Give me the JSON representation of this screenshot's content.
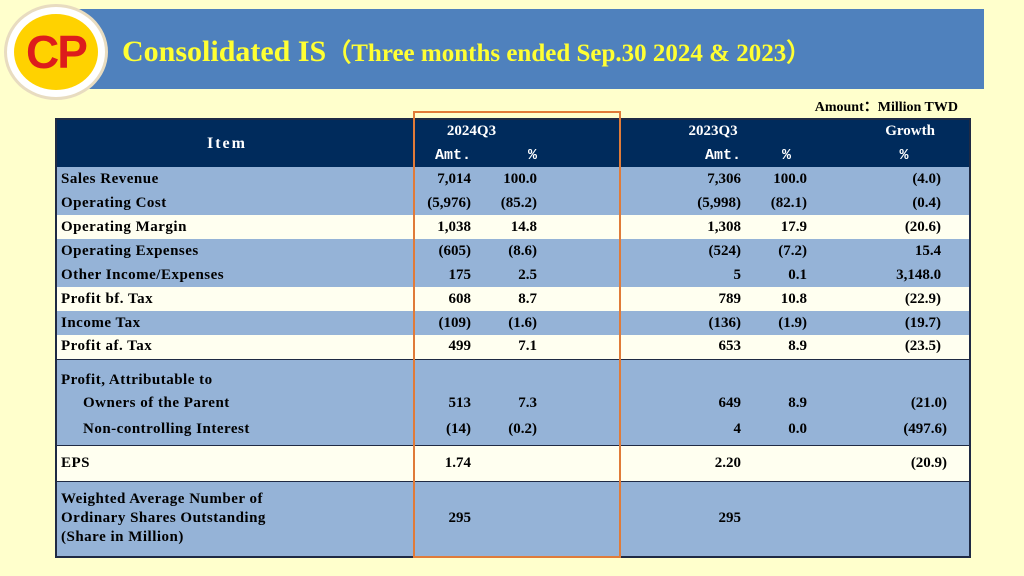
{
  "title": {
    "main": "Consolidated IS",
    "sub": "（Three months ended Sep.30 2024 & 2023）"
  },
  "logo": {
    "text": "CP"
  },
  "amount_note": "Amount：Million TWD",
  "table": {
    "header": {
      "item": "Item",
      "periods": [
        "2024Q3",
        "2023Q3"
      ],
      "growth": "Growth",
      "amt": "Amt.",
      "pct": "%"
    },
    "rows": [
      {
        "label": "Sales Revenue",
        "a24": "7,014",
        "p24": "100.0",
        "a23": "7,306",
        "p23": "100.0",
        "g": "(4.0)",
        "style": "blue"
      },
      {
        "label": "Operating Cost",
        "a24": "(5,976)",
        "p24": "(85.2)",
        "a23": "(5,998)",
        "p23": "(82.1)",
        "g": "(0.4)",
        "style": "blue"
      },
      {
        "label": "Operating Margin",
        "a24": "1,038",
        "p24": "14.8",
        "a23": "1,308",
        "p23": "17.9",
        "g": "(20.6)",
        "style": "white"
      },
      {
        "label": "Operating Expenses",
        "a24": "(605)",
        "p24": "(8.6)",
        "a23": "(524)",
        "p23": "(7.2)",
        "g": "15.4",
        "style": "blue"
      },
      {
        "label": "Other Income/Expenses",
        "a24": "175",
        "p24": "2.5",
        "a23": "5",
        "p23": "0.1",
        "g": "3,148.0",
        "style": "blue"
      },
      {
        "label": "Profit bf. Tax",
        "a24": "608",
        "p24": "8.7",
        "a23": "789",
        "p23": "10.8",
        "g": "(22.9)",
        "style": "white"
      },
      {
        "label": "Income Tax",
        "a24": "(109)",
        "p24": "(1.6)",
        "a23": "(136)",
        "p23": "(1.9)",
        "g": "(19.7)",
        "style": "blue"
      },
      {
        "label": "Profit af. Tax",
        "a24": "499",
        "p24": "7.1",
        "a23": "653",
        "p23": "8.9",
        "g": "(23.5)",
        "style": "white"
      }
    ],
    "attrib": {
      "heading": "Profit, Attributable to",
      "rows": [
        {
          "label": "Owners of the Parent",
          "a24": "513",
          "p24": "7.3",
          "a23": "649",
          "p23": "8.9",
          "g": "(21.0)"
        },
        {
          "label": "Non-controlling Interest",
          "a24": "(14)",
          "p24": "(0.2)",
          "a23": "4",
          "p23": "0.0",
          "g": "(497.6)"
        }
      ]
    },
    "eps": {
      "label": "EPS",
      "a24": "1.74",
      "a23": "2.20",
      "g": "(20.9)"
    },
    "shares": {
      "label_lines": [
        "Weighted Average Number of",
        "Ordinary Shares Outstanding",
        "(Share in Million)"
      ],
      "a24": "295",
      "a23": "295"
    }
  }
}
